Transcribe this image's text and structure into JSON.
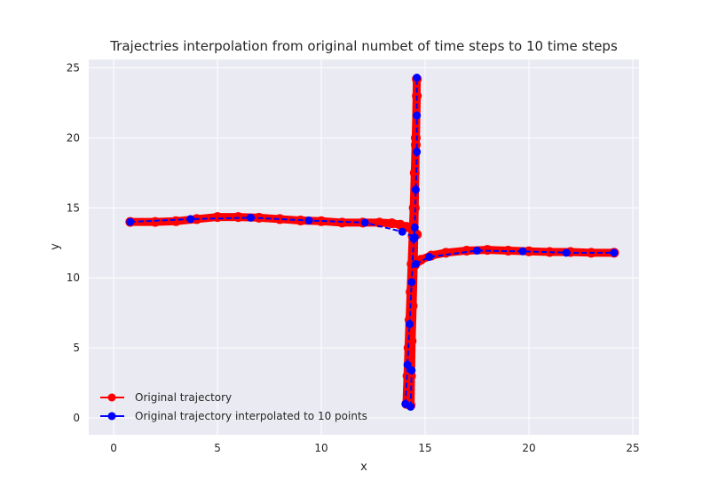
{
  "chart_data": {
    "type": "line",
    "title": "Trajectries interpolation from original numbet of time steps to 10 time steps",
    "xlabel": "x",
    "ylabel": "y",
    "xlim": [
      -1.2,
      25.3
    ],
    "ylim": [
      -1.2,
      25.6
    ],
    "xticks": [
      0,
      5,
      10,
      15,
      20,
      25
    ],
    "yticks": [
      0,
      5,
      10,
      15,
      20,
      25
    ],
    "grid": true,
    "legend_position": "lower-left",
    "colors": {
      "background": "#eaeaf2",
      "grid": "#ffffff",
      "original": "#ff0000",
      "interpolated": "#0000ff"
    },
    "series": [
      {
        "name": "Original trajectory",
        "style": "solid-thick-with-markers",
        "trajectories": [
          {
            "x": [
              0.8,
              2.0,
              3.0,
              4.0,
              5.0,
              6.0,
              7.0,
              8.0,
              9.0,
              10.0,
              11.0,
              12.0,
              12.8,
              13.4,
              13.8,
              14.1,
              14.4,
              14.6
            ],
            "y": [
              14.0,
              14.0,
              14.05,
              14.2,
              14.35,
              14.35,
              14.3,
              14.2,
              14.1,
              14.05,
              13.95,
              13.95,
              13.95,
              13.9,
              13.8,
              13.65,
              13.4,
              13.1
            ]
          },
          {
            "x": [
              14.1,
              14.15,
              14.2,
              14.25,
              14.3,
              14.35,
              14.4,
              14.45,
              14.5,
              14.55,
              14.6
            ],
            "y": [
              1.0,
              3.0,
              5.0,
              7.0,
              9.0,
              11.0,
              13.0,
              15.0,
              17.5,
              20.0,
              23.0
            ]
          },
          {
            "x": [
              14.3,
              14.32,
              14.35,
              14.4,
              14.45,
              14.5,
              14.55,
              14.6
            ],
            "y": [
              0.9,
              3.0,
              5.5,
              8.0,
              11.0,
              15.0,
              19.5,
              24.2
            ]
          },
          {
            "x": [
              14.5,
              14.8,
              15.3,
              16.0,
              17.0,
              18.0,
              19.0,
              20.0,
              21.0,
              22.0,
              23.0,
              24.1
            ],
            "y": [
              10.9,
              11.3,
              11.6,
              11.8,
              11.95,
              12.0,
              11.95,
              11.9,
              11.85,
              11.85,
              11.8,
              11.8
            ]
          }
        ]
      },
      {
        "name": "Original trajectory interpolated to 10 points",
        "style": "dashed-with-markers",
        "trajectories": [
          {
            "x": [
              0.8,
              3.7,
              6.6,
              9.4,
              12.1,
              13.9,
              14.5
            ],
            "y": [
              14.0,
              14.2,
              14.3,
              14.1,
              13.95,
              13.3,
              12.9
            ]
          },
          {
            "x": [
              14.05,
              14.15,
              14.25,
              14.35,
              14.45,
              14.5,
              14.55,
              14.6,
              14.6,
              14.6
            ],
            "y": [
              1.0,
              3.8,
              6.7,
              9.7,
              12.8,
              13.6,
              16.3,
              19.0,
              21.6,
              24.3
            ]
          },
          {
            "x": [
              14.3,
              14.35
            ],
            "y": [
              0.8,
              3.4
            ]
          },
          {
            "x": [
              14.55,
              15.2,
              17.5,
              19.7,
              21.8,
              24.1
            ],
            "y": [
              11.0,
              11.5,
              11.95,
              11.9,
              11.8,
              11.8
            ]
          }
        ]
      }
    ]
  }
}
